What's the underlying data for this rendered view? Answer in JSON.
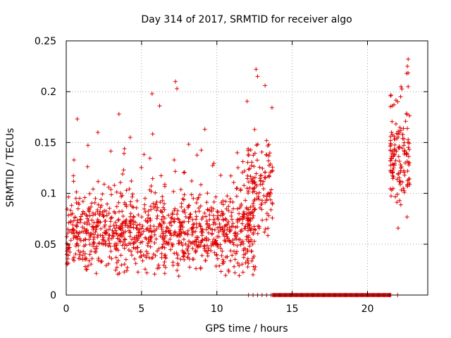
{
  "chart_data": {
    "type": "scatter",
    "title": "Day 314 of 2017, SRMTID for receiver algo",
    "xlabel": "GPS time / hours",
    "ylabel": "SRMTID / TECUs",
    "xlim": [
      0,
      24
    ],
    "ylim": [
      0,
      0.25
    ],
    "xticks": [
      0,
      5,
      10,
      15,
      20
    ],
    "xtick_labels": [
      "0",
      "5",
      "10",
      "15",
      "20"
    ],
    "yticks": [
      0,
      0.05,
      0.1,
      0.15,
      0.2,
      0.25
    ],
    "ytick_labels": [
      "0",
      "0.05",
      "0.1",
      "0.15",
      "0.2",
      "0.25"
    ],
    "grid": true,
    "marker": "+",
    "color": "#e00000",
    "series": [
      {
        "name": "SRMTID",
        "segments": [
          {
            "x_start": 0.0,
            "x_end": 12.6,
            "baseline": 0.06,
            "spread": 0.045,
            "count": 1050
          },
          {
            "x_start": 12.0,
            "x_end": 13.7,
            "baseline": 0.1,
            "spread": 0.06,
            "count": 130
          },
          {
            "x_start": 21.5,
            "x_end": 22.8,
            "baseline": 0.13,
            "spread": 0.05,
            "count": 140
          }
        ],
        "zero_run": {
          "x_start": 13.7,
          "x_end": 21.6
        },
        "zero_sparse": [
          12.1,
          12.4,
          12.7,
          13.0,
          13.3,
          13.6,
          22.0
        ],
        "peaks": [
          {
            "x": 12.6,
            "y": 0.222
          },
          {
            "x": 12.7,
            "y": 0.215
          },
          {
            "x": 13.2,
            "y": 0.206
          },
          {
            "x": 7.25,
            "y": 0.21
          },
          {
            "x": 7.35,
            "y": 0.203
          },
          {
            "x": 5.7,
            "y": 0.198
          },
          {
            "x": 6.2,
            "y": 0.186
          },
          {
            "x": 3.5,
            "y": 0.178
          },
          {
            "x": 9.2,
            "y": 0.163
          },
          {
            "x": 2.1,
            "y": 0.16
          },
          {
            "x": 22.7,
            "y": 0.232
          },
          {
            "x": 22.65,
            "y": 0.225
          },
          {
            "x": 22.6,
            "y": 0.218
          },
          {
            "x": 22.7,
            "y": 0.205
          },
          {
            "x": 22.2,
            "y": 0.195
          },
          {
            "x": 22.0,
            "y": 0.19
          },
          {
            "x": 12.4,
            "y": 0.02
          },
          {
            "x": 12.5,
            "y": 0.025
          }
        ]
      }
    ]
  }
}
